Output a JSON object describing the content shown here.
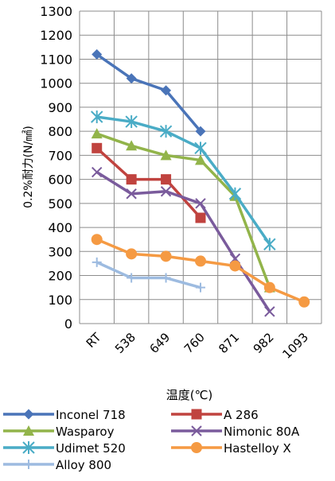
{
  "chart_data": {
    "type": "line",
    "title": "",
    "xlabel": "温度(℃)",
    "ylabel": "0.2%耐力(N/㎟)",
    "ylim": [
      0,
      1300
    ],
    "yticks": [
      0,
      100,
      200,
      300,
      400,
      500,
      600,
      700,
      800,
      900,
      1000,
      1100,
      1200,
      1300
    ],
    "categories": [
      "RT",
      "538",
      "649",
      "760",
      "871",
      "982",
      "1093"
    ],
    "grid": true,
    "legend_position": "bottom",
    "series": [
      {
        "name": "Inconel 718",
        "color": "#4a74b8",
        "marker": "diamond",
        "values": [
          1120,
          1020,
          970,
          800,
          null,
          null,
          null
        ]
      },
      {
        "name": "A 286",
        "color": "#c0433f",
        "marker": "square",
        "values": [
          730,
          600,
          600,
          440,
          null,
          null,
          null
        ]
      },
      {
        "name": "Wasparoy",
        "color": "#92b44a",
        "marker": "triangle",
        "values": [
          790,
          740,
          700,
          680,
          530,
          150,
          null
        ]
      },
      {
        "name": "Nimonic 80A",
        "color": "#7a5b9c",
        "marker": "x",
        "values": [
          630,
          540,
          550,
          500,
          270,
          50,
          null
        ]
      },
      {
        "name": "Udimet 520",
        "color": "#4aacc6",
        "marker": "star",
        "values": [
          860,
          840,
          800,
          730,
          540,
          330,
          null
        ]
      },
      {
        "name": "Hastelloy X",
        "color": "#f59a43",
        "marker": "circle",
        "values": [
          350,
          290,
          280,
          260,
          240,
          150,
          90
        ]
      },
      {
        "name": "Alloy 800",
        "color": "#9dbbe0",
        "marker": "plus",
        "values": [
          255,
          190,
          190,
          150,
          null,
          null,
          null
        ]
      }
    ]
  }
}
